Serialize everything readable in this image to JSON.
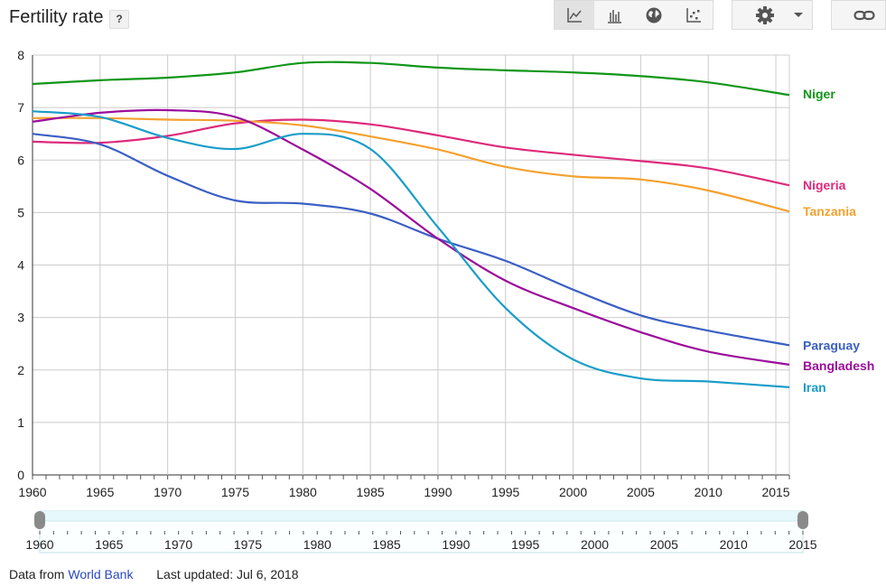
{
  "title": "Fertility rate",
  "help_label": "?",
  "toolbar": {
    "line_chart_icon": "line-chart-icon",
    "bar_chart_icon": "bar-chart-icon",
    "map_icon": "globe-icon",
    "scatter_icon": "scatter-chart-icon",
    "settings_icon": "gear-icon",
    "dropdown_icon": "caret-down-icon",
    "link_icon": "link-icon"
  },
  "footer": {
    "source_prefix": "Data from",
    "source_link": "World Bank",
    "last_updated": "Last updated: Jul 6, 2018"
  },
  "chart_data": {
    "type": "line",
    "title": "Fertility rate",
    "xlabel": "",
    "ylabel": "",
    "xlim": [
      1960,
      2016
    ],
    "ylim": [
      0,
      8
    ],
    "x_ticks": [
      "1960",
      "1965",
      "1970",
      "1975",
      "1980",
      "1985",
      "1990",
      "1995",
      "2000",
      "2005",
      "2010",
      "2015"
    ],
    "y_ticks": [
      "0",
      "1",
      "2",
      "3",
      "4",
      "5",
      "6",
      "7",
      "8"
    ],
    "grid": true,
    "legend": "right, labels at line ends",
    "x": [
      1960,
      1965,
      1970,
      1975,
      1980,
      1985,
      1990,
      1995,
      2000,
      2005,
      2010,
      2016
    ],
    "series": [
      {
        "name": "Niger",
        "color": "#109618",
        "values": [
          7.45,
          7.52,
          7.57,
          7.67,
          7.85,
          7.85,
          7.76,
          7.71,
          7.67,
          7.6,
          7.48,
          7.24
        ]
      },
      {
        "name": "Nigeria",
        "color": "#dd2a7b",
        "values": [
          6.35,
          6.33,
          6.46,
          6.7,
          6.77,
          6.68,
          6.47,
          6.24,
          6.1,
          5.98,
          5.84,
          5.52
        ]
      },
      {
        "name": "Tanzania",
        "color": "#f4a12f",
        "values": [
          6.8,
          6.8,
          6.77,
          6.75,
          6.66,
          6.45,
          6.2,
          5.87,
          5.69,
          5.63,
          5.42,
          5.02
        ]
      },
      {
        "name": "Paraguay",
        "color": "#3b5fc4",
        "values": [
          6.5,
          6.3,
          5.7,
          5.23,
          5.17,
          4.98,
          4.5,
          4.08,
          3.53,
          3.04,
          2.75,
          2.47
        ]
      },
      {
        "name": "Bangladesh",
        "color": "#9b0c9b",
        "values": [
          6.73,
          6.9,
          6.95,
          6.82,
          6.2,
          5.45,
          4.5,
          3.7,
          3.18,
          2.72,
          2.35,
          2.1
        ]
      },
      {
        "name": "Iran",
        "color": "#1a9dc9",
        "values": [
          6.93,
          6.82,
          6.42,
          6.21,
          6.5,
          6.21,
          4.72,
          3.18,
          2.2,
          1.84,
          1.78,
          1.67
        ]
      }
    ]
  },
  "range_slider": {
    "start": 1960,
    "end": 2015,
    "ticks": [
      "1960",
      "1965",
      "1970",
      "1975",
      "1980",
      "1985",
      "1990",
      "1995",
      "2000",
      "2005",
      "2010",
      "2015"
    ]
  }
}
